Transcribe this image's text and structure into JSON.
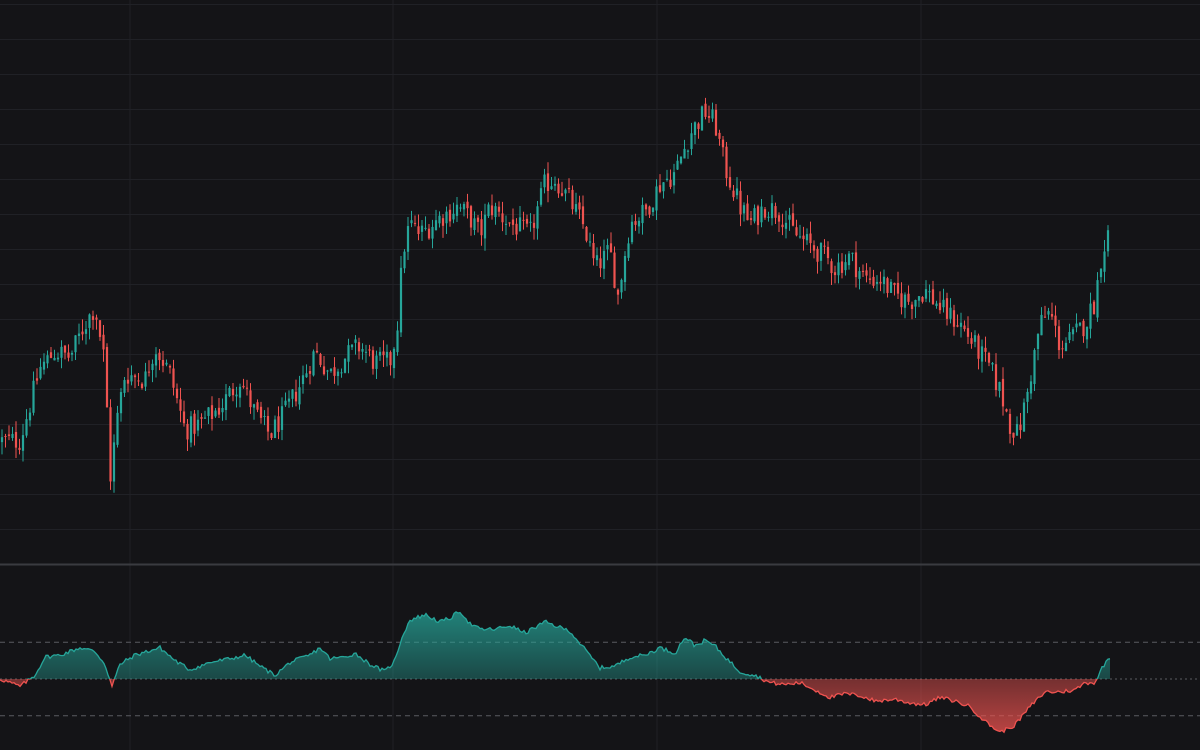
{
  "colors": {
    "background": "#141417",
    "grid": "#202126",
    "up": "#26a69a",
    "down": "#ef5350",
    "divider": "#3a3b40",
    "guide": "#5a5b60"
  },
  "chart_data": [
    {
      "type": "candlestick",
      "title": "",
      "xlabel": "",
      "ylabel": "",
      "grid": true,
      "ylim": [
        0,
        100
      ],
      "series": [
        {
          "close_path": [
            [
              0,
              21
            ],
            [
              20,
              21
            ],
            [
              40,
              34
            ],
            [
              55,
              37
            ],
            [
              70,
              36
            ],
            [
              85,
              42
            ],
            [
              95,
              45
            ],
            [
              105,
              35
            ],
            [
              110,
              14
            ],
            [
              118,
              26
            ],
            [
              125,
              33
            ],
            [
              145,
              32
            ],
            [
              155,
              38
            ],
            [
              170,
              33
            ],
            [
              185,
              23
            ],
            [
              200,
              24
            ],
            [
              220,
              27
            ],
            [
              240,
              32
            ],
            [
              255,
              26
            ],
            [
              270,
              22
            ],
            [
              285,
              26
            ],
            [
              300,
              31
            ],
            [
              315,
              37
            ],
            [
              330,
              33
            ],
            [
              345,
              36
            ],
            [
              360,
              38
            ],
            [
              375,
              35
            ],
            [
              390,
              35
            ],
            [
              397,
              41
            ],
            [
              403,
              55
            ],
            [
              410,
              60
            ],
            [
              420,
              58
            ],
            [
              440,
              61
            ],
            [
              458,
              63
            ],
            [
              470,
              61
            ],
            [
              480,
              58
            ],
            [
              490,
              63
            ],
            [
              510,
              60
            ],
            [
              530,
              58
            ],
            [
              545,
              67
            ],
            [
              555,
              68
            ],
            [
              570,
              64
            ],
            [
              585,
              59
            ],
            [
              595,
              52
            ],
            [
              610,
              55
            ],
            [
              618,
              47
            ],
            [
              630,
              60
            ],
            [
              645,
              62
            ],
            [
              660,
              67
            ],
            [
              675,
              69
            ],
            [
              690,
              76
            ],
            [
              705,
              80
            ],
            [
              715,
              78
            ],
            [
              725,
              70
            ],
            [
              740,
              63
            ],
            [
              750,
              60
            ],
            [
              765,
              63
            ],
            [
              780,
              62
            ],
            [
              795,
              58
            ],
            [
              810,
              56
            ],
            [
              825,
              54
            ],
            [
              835,
              52
            ],
            [
              850,
              54
            ],
            [
              865,
              50
            ],
            [
              880,
              50
            ],
            [
              895,
              47
            ],
            [
              910,
              46
            ],
            [
              925,
              48
            ],
            [
              945,
              44
            ],
            [
              960,
              42
            ],
            [
              975,
              38
            ],
            [
              990,
              34
            ],
            [
              1000,
              30
            ],
            [
              1010,
              24
            ],
            [
              1018,
              22
            ],
            [
              1028,
              30
            ],
            [
              1040,
              42
            ],
            [
              1050,
              44
            ],
            [
              1060,
              38
            ],
            [
              1070,
              39
            ],
            [
              1085,
              42
            ],
            [
              1095,
              46
            ],
            [
              1102,
              55
            ],
            [
              1110,
              59
            ]
          ]
        }
      ]
    },
    {
      "type": "area",
      "title": "",
      "xlabel": "",
      "ylabel": "",
      "ylim": [
        0,
        100
      ],
      "reference_lines": [
        70,
        50,
        30
      ],
      "series": [
        {
          "values_path": [
            [
              0,
              50
            ],
            [
              20,
              46
            ],
            [
              35,
              52
            ],
            [
              45,
              62
            ],
            [
              60,
              63
            ],
            [
              80,
              67
            ],
            [
              95,
              65
            ],
            [
              105,
              58
            ],
            [
              112,
              46
            ],
            [
              120,
              58
            ],
            [
              135,
              63
            ],
            [
              160,
              67
            ],
            [
              175,
              60
            ],
            [
              190,
              55
            ],
            [
              210,
              59
            ],
            [
              230,
              61
            ],
            [
              245,
              63
            ],
            [
              260,
              57
            ],
            [
              275,
              52
            ],
            [
              290,
              59
            ],
            [
              310,
              63
            ],
            [
              320,
              67
            ],
            [
              330,
              61
            ],
            [
              345,
              62
            ],
            [
              355,
              64
            ],
            [
              370,
              58
            ],
            [
              385,
              54
            ],
            [
              395,
              60
            ],
            [
              402,
              73
            ],
            [
              410,
              82
            ],
            [
              425,
              85
            ],
            [
              440,
              81
            ],
            [
              450,
              83
            ],
            [
              460,
              87
            ],
            [
              470,
              80
            ],
            [
              480,
              77
            ],
            [
              495,
              77
            ],
            [
              510,
              79
            ],
            [
              525,
              75
            ],
            [
              545,
              81
            ],
            [
              555,
              79
            ],
            [
              570,
              76
            ],
            [
              585,
              66
            ],
            [
              600,
              56
            ],
            [
              615,
              57
            ],
            [
              630,
              62
            ],
            [
              645,
              63
            ],
            [
              660,
              67
            ],
            [
              675,
              64
            ],
            [
              685,
              73
            ],
            [
              695,
              68
            ],
            [
              705,
              71
            ],
            [
              715,
              68
            ],
            [
              725,
              62
            ],
            [
              740,
              54
            ],
            [
              755,
              52
            ],
            [
              770,
              48
            ],
            [
              785,
              47
            ],
            [
              800,
              48
            ],
            [
              815,
              44
            ],
            [
              830,
              40
            ],
            [
              845,
              42
            ],
            [
              860,
              41
            ],
            [
              875,
              38
            ],
            [
              895,
              39
            ],
            [
              910,
              37
            ],
            [
              925,
              36
            ],
            [
              940,
              40
            ],
            [
              955,
              38
            ],
            [
              970,
              35
            ],
            [
              985,
              27
            ],
            [
              1000,
              21
            ],
            [
              1015,
              25
            ],
            [
              1030,
              35
            ],
            [
              1045,
              43
            ],
            [
              1060,
              43
            ],
            [
              1075,
              44
            ],
            [
              1085,
              48
            ],
            [
              1095,
              48
            ],
            [
              1103,
              57
            ],
            [
              1110,
              62
            ]
          ]
        }
      ]
    }
  ]
}
